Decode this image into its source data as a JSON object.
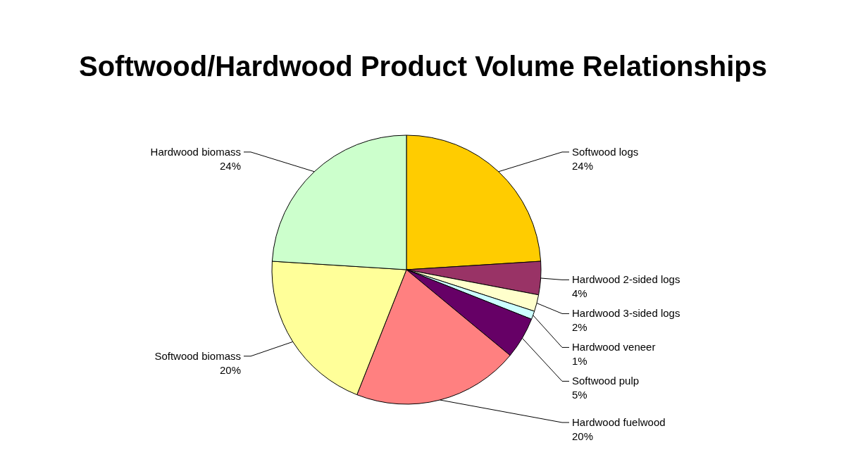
{
  "chart_data": {
    "type": "pie",
    "title": "Softwood/Hardwood Product Volume Relationships",
    "categories": [
      "Softwood logs",
      "Hardwood 2-sided logs",
      "Hardwood 3-sided logs",
      "Hardwood veneer",
      "Softwood pulp",
      "Hardwood fuelwood",
      "Softwood biomass",
      "Hardwood biomass"
    ],
    "values": [
      24,
      4,
      2,
      1,
      5,
      20,
      20,
      24
    ],
    "value_labels": [
      "24%",
      "4%",
      "2%",
      "1%",
      "5%",
      "20%",
      "20%",
      "24%"
    ],
    "colors": [
      "#ffcc00",
      "#993366",
      "#ffffcc",
      "#ccffff",
      "#660066",
      "#ff8080",
      "#ffff99",
      "#ccffcc"
    ],
    "legend": false
  }
}
